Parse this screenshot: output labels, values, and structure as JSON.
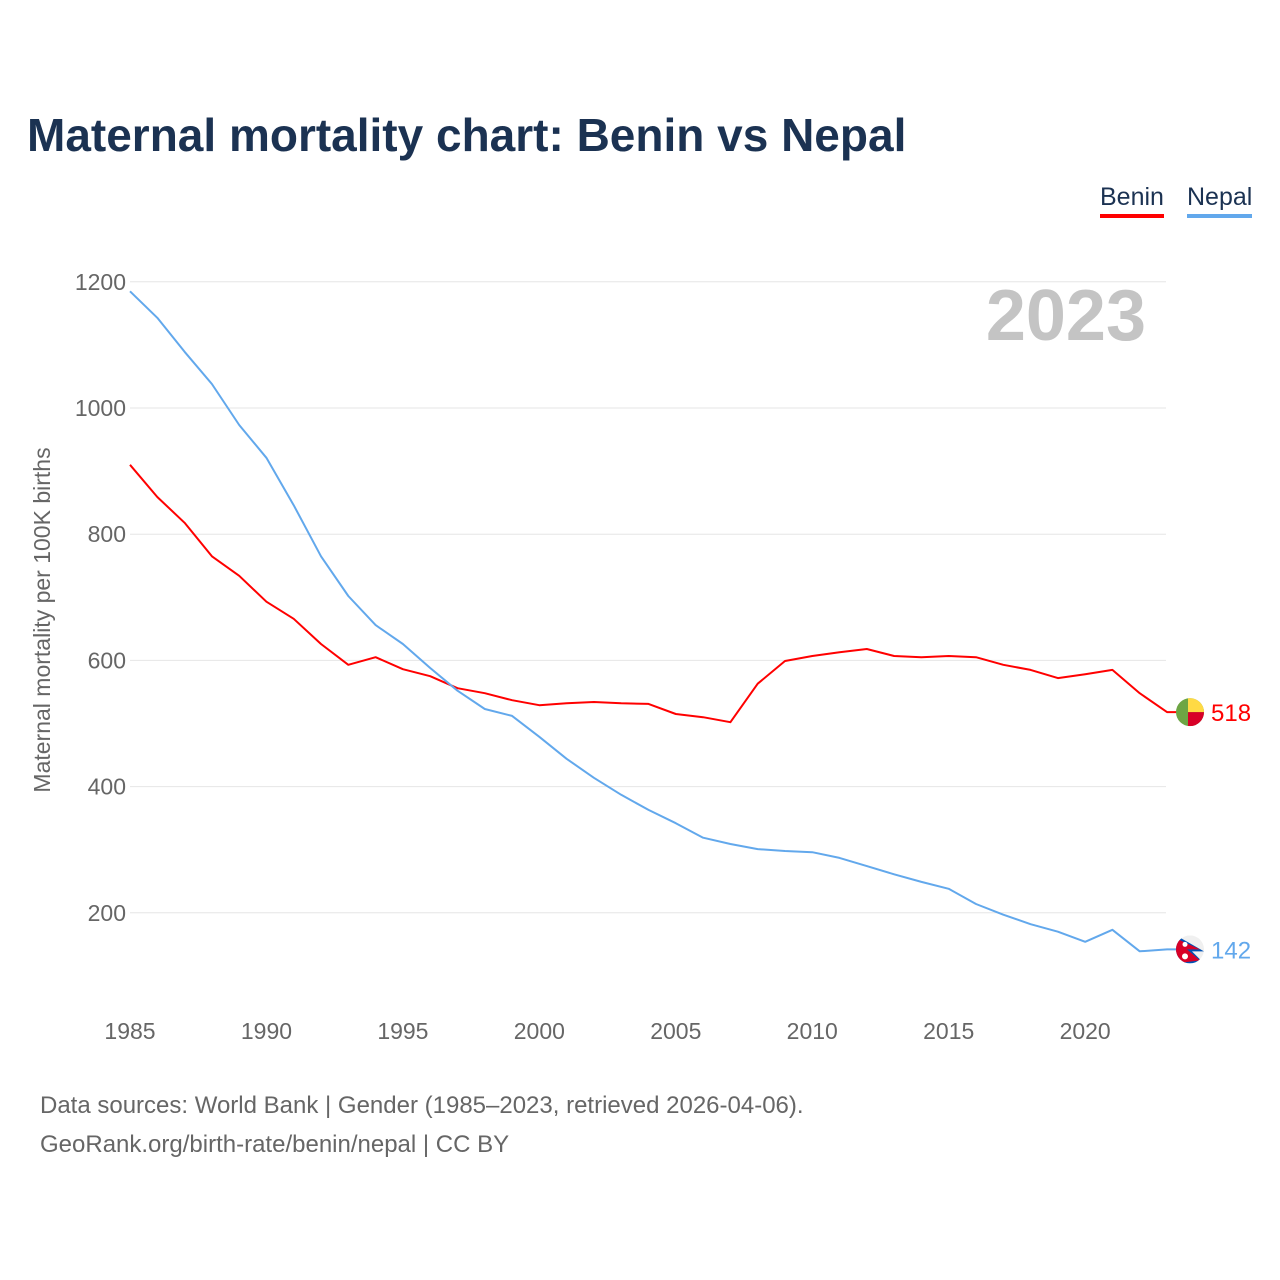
{
  "title": "Maternal mortality chart: Benin vs Nepal",
  "footer": {
    "line1": "Data sources: World Bank | Gender (1985–2023, retrieved 2026-04-06).",
    "line2": "GeoRank.org/birth-rate/benin/nepal | CC BY"
  },
  "chart_data": {
    "type": "line",
    "title": "Maternal mortality chart: Benin vs Nepal",
    "year_label": "2023",
    "xlabel": "",
    "ylabel": "Maternal mortality per 100K births",
    "xlim": [
      1985,
      2023
    ],
    "ylim": [
      100,
      1200
    ],
    "xticks": [
      1985,
      1990,
      1995,
      2000,
      2005,
      2010,
      2015,
      2020
    ],
    "yticks": [
      200,
      400,
      600,
      800,
      1000,
      1200
    ],
    "grid": true,
    "legend_position": "top-right",
    "x": [
      1985,
      1986,
      1987,
      1988,
      1989,
      1990,
      1991,
      1992,
      1993,
      1994,
      1995,
      1996,
      1997,
      1998,
      1999,
      2000,
      2001,
      2002,
      2003,
      2004,
      2005,
      2006,
      2007,
      2008,
      2009,
      2010,
      2011,
      2012,
      2013,
      2014,
      2015,
      2016,
      2017,
      2018,
      2019,
      2020,
      2021,
      2022,
      2023
    ],
    "series": [
      {
        "name": "Benin",
        "color": "#ff0000",
        "end_label": "518",
        "flag": "benin-flag",
        "values": [
          910,
          859,
          818,
          765,
          734,
          693,
          666,
          626,
          593,
          605,
          586,
          575,
          556,
          548,
          537,
          529,
          532,
          534,
          532,
          531,
          515,
          510,
          502,
          563,
          599,
          607,
          613,
          618,
          607,
          605,
          607,
          605,
          593,
          585,
          572,
          578,
          585,
          548,
          518
        ]
      },
      {
        "name": "Nepal",
        "color": "#62a8ec",
        "end_label": "142",
        "flag": "nepal-flag",
        "values": [
          1185,
          1143,
          1089,
          1038,
          973,
          921,
          846,
          765,
          702,
          656,
          626,
          588,
          552,
          523,
          512,
          479,
          444,
          414,
          387,
          363,
          342,
          319,
          309,
          301,
          298,
          296,
          287,
          274,
          261,
          249,
          238,
          214,
          197,
          182,
          170,
          154,
          173,
          139,
          142
        ]
      }
    ]
  }
}
